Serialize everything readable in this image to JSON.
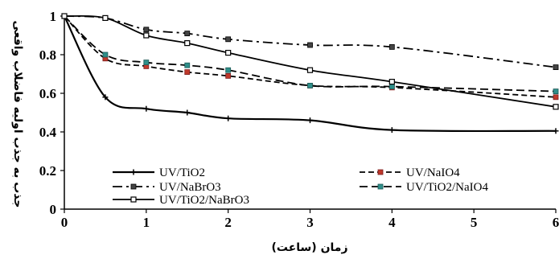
{
  "chart_data": {
    "type": "line",
    "title": "",
    "xlabel": "زمان (ساعت)",
    "ylabel": "جذب به جذب اولیه فاضلاب واقعی",
    "xlim": [
      0,
      6
    ],
    "ylim": [
      0,
      1
    ],
    "x_ticks": [
      "0",
      "1",
      "2",
      "3",
      "4",
      "5",
      "6"
    ],
    "y_ticks": [
      "0",
      "0.2",
      "0.4",
      "0.6",
      "0.8",
      "1"
    ],
    "grid": false,
    "legend_position": "bottom-inside",
    "series": [
      {
        "name": "UV/TiO2",
        "color": "#000000",
        "dash": "solid",
        "marker": "plus",
        "x": [
          0,
          0.5,
          1,
          1.5,
          2,
          3,
          4,
          6
        ],
        "values": [
          1.0,
          0.58,
          0.52,
          0.5,
          0.47,
          0.46,
          0.41,
          0.405
        ]
      },
      {
        "name": "UV/NaIO4",
        "color": "#000000",
        "dash": "dash",
        "marker": "square-red",
        "x": [
          0,
          0.5,
          1,
          1.5,
          2,
          3,
          4,
          6
        ],
        "values": [
          1.0,
          0.78,
          0.74,
          0.71,
          0.69,
          0.64,
          0.63,
          0.58
        ]
      },
      {
        "name": "UV/NaBrO3",
        "color": "#000000",
        "dash": "dashdot",
        "marker": "square",
        "x": [
          0,
          0.5,
          1,
          1.5,
          2,
          3,
          4,
          6
        ],
        "values": [
          1.0,
          0.99,
          0.93,
          0.91,
          0.88,
          0.85,
          0.84,
          0.735
        ]
      },
      {
        "name": "UV/TiO2/NaIO4",
        "color": "#000000",
        "dash": "longdash",
        "marker": "square-teal",
        "x": [
          0,
          0.5,
          1,
          1.5,
          2,
          3,
          4,
          6
        ],
        "values": [
          1.0,
          0.8,
          0.76,
          0.745,
          0.72,
          0.64,
          0.635,
          0.61
        ]
      },
      {
        "name": "UV/TiO2/NaBrO3",
        "color": "#000000",
        "dash": "solid",
        "marker": "square-open",
        "x": [
          0,
          0.5,
          1,
          1.5,
          2,
          3,
          4,
          6
        ],
        "values": [
          1.0,
          0.99,
          0.9,
          0.86,
          0.81,
          0.72,
          0.66,
          0.53
        ]
      }
    ]
  }
}
